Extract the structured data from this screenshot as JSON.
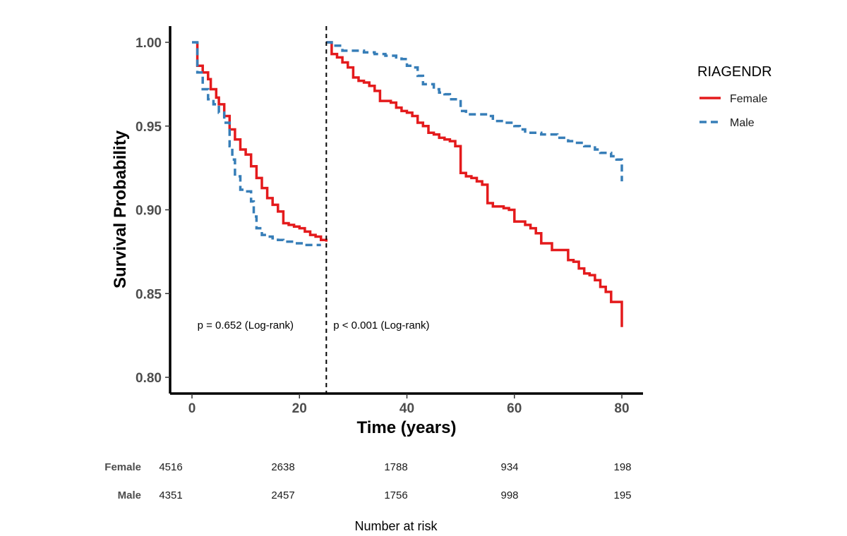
{
  "chart_data": {
    "type": "line",
    "subtype": "kaplan-meier-step",
    "xlabel": "Time (years)",
    "ylabel": "Survival Probability",
    "xlim": [
      -4,
      84
    ],
    "ylim": [
      0.79,
      1.009
    ],
    "xticks": [
      0,
      20,
      40,
      60,
      80
    ],
    "xtick_labels": [
      "0",
      "20",
      "40",
      "60",
      "80"
    ],
    "yticks": [
      0.8,
      0.85,
      0.9,
      0.95,
      1.0
    ],
    "ytick_labels": [
      "0.80",
      "0.85",
      "0.90",
      "0.95",
      "1.00"
    ],
    "grid": false,
    "landmark_x": 25,
    "legend": {
      "title": "RIAGENDR",
      "placement": "right",
      "items": [
        {
          "label": "Female",
          "color": "#E41A1C",
          "dash": "solid"
        },
        {
          "label": "Male",
          "color": "#377EB8",
          "dash": "dashed"
        }
      ]
    },
    "annotations": [
      {
        "text": "p = 0.652 (Log-rank)",
        "x": 1,
        "y": 0.829
      },
      {
        "text": "p < 0.001 (Log-rank)",
        "x": 26.3,
        "y": 0.829
      }
    ],
    "series": [
      {
        "name": "Female",
        "color": "#E41A1C",
        "dash": "solid",
        "segments": [
          {
            "x": [
              1,
              1,
              2,
              3,
              3.5,
              4.5,
              5,
              6,
              7,
              8,
              9,
              10,
              11,
              12,
              13,
              14,
              15,
              16,
              17,
              18,
              19,
              20,
              21,
              22,
              23,
              24,
              25
            ],
            "y": [
              1.0,
              0.986,
              0.982,
              0.978,
              0.972,
              0.967,
              0.963,
              0.956,
              0.948,
              0.942,
              0.936,
              0.933,
              0.926,
              0.919,
              0.913,
              0.907,
              0.903,
              0.899,
              0.892,
              0.891,
              0.89,
              0.889,
              0.887,
              0.885,
              0.884,
              0.882,
              0.881
            ]
          },
          {
            "x": [
              25,
              26,
              27,
              28,
              29,
              30,
              31,
              32,
              33,
              34,
              35,
              36,
              37,
              38,
              39,
              40,
              41,
              42,
              43,
              44,
              45,
              46,
              47,
              48,
              49,
              50,
              51,
              52,
              53,
              54,
              55,
              56,
              57,
              58,
              59,
              60,
              61,
              62,
              63,
              64,
              65,
              66,
              67,
              68,
              69,
              70,
              71,
              72,
              73,
              74,
              75,
              76,
              77,
              78,
              79,
              80
            ],
            "y": [
              1.0,
              0.993,
              0.991,
              0.988,
              0.985,
              0.979,
              0.977,
              0.976,
              0.974,
              0.971,
              0.965,
              0.965,
              0.964,
              0.961,
              0.959,
              0.958,
              0.956,
              0.952,
              0.95,
              0.946,
              0.945,
              0.943,
              0.942,
              0.941,
              0.938,
              0.922,
              0.92,
              0.919,
              0.917,
              0.915,
              0.904,
              0.902,
              0.902,
              0.901,
              0.9,
              0.893,
              0.893,
              0.891,
              0.889,
              0.886,
              0.88,
              0.88,
              0.876,
              0.876,
              0.876,
              0.87,
              0.869,
              0.865,
              0.862,
              0.861,
              0.858,
              0.854,
              0.851,
              0.845,
              0.845,
              0.83
            ]
          }
        ]
      },
      {
        "name": "Male",
        "color": "#377EB8",
        "dash": "dashed",
        "segments": [
          {
            "x": [
              0,
              1,
              1,
              2,
              3,
              4,
              5,
              6,
              7,
              7.5,
              8,
              9,
              10,
              11,
              11.5,
              12,
              13,
              14,
              15,
              16,
              17,
              18,
              19,
              20,
              21,
              22,
              23,
              24
            ],
            "y": [
              1.0,
              1.0,
              0.982,
              0.972,
              0.966,
              0.963,
              0.958,
              0.952,
              0.938,
              0.93,
              0.92,
              0.912,
              0.911,
              0.905,
              0.896,
              0.889,
              0.885,
              0.884,
              0.883,
              0.882,
              0.881,
              0.881,
              0.88,
              0.88,
              0.879,
              0.879,
              0.879,
              0.879
            ]
          },
          {
            "x": [
              25,
              26,
              28,
              30,
              32,
              34,
              36,
              38,
              39,
              40,
              41,
              42,
              43,
              45,
              46,
              47,
              48,
              50,
              51,
              55,
              56,
              58,
              60,
              61,
              62,
              65,
              68,
              70,
              71,
              73,
              75,
              76,
              78,
              79,
              80,
              80
            ],
            "y": [
              1.0,
              0.998,
              0.995,
              0.995,
              0.994,
              0.993,
              0.992,
              0.991,
              0.99,
              0.986,
              0.985,
              0.98,
              0.975,
              0.972,
              0.97,
              0.969,
              0.966,
              0.959,
              0.957,
              0.956,
              0.953,
              0.952,
              0.95,
              0.948,
              0.946,
              0.945,
              0.943,
              0.941,
              0.94,
              0.938,
              0.936,
              0.934,
              0.932,
              0.93,
              0.928,
              0.917
            ]
          }
        ]
      }
    ],
    "risk_table": {
      "title": "Number at risk",
      "times": [
        0,
        20,
        40,
        60,
        80
      ],
      "rows": [
        {
          "group": "Female",
          "values": [
            "4516",
            "2638",
            "1788",
            "934",
            "198"
          ]
        },
        {
          "group": "Male",
          "values": [
            "4351",
            "2457",
            "1756",
            "998",
            "195"
          ]
        }
      ]
    }
  }
}
